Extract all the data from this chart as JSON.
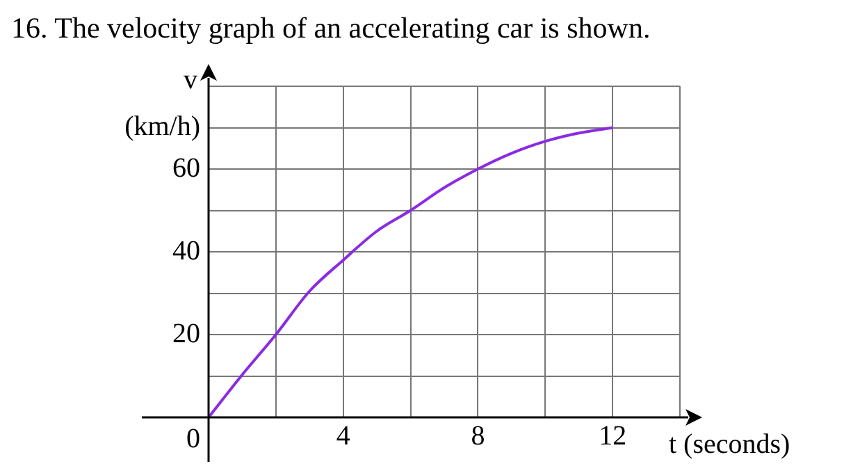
{
  "chart_data": {
    "type": "line",
    "title": "16. The velocity graph of an accelerating car is shown.",
    "xlabel": "t (seconds)",
    "ylabel": "v (km/h)",
    "x": [
      0,
      1,
      2,
      3,
      4,
      5,
      6,
      7,
      8,
      9,
      10,
      11,
      12
    ],
    "series": [
      {
        "color": "#8a2be2",
        "values": [
          0,
          10.3,
          20,
          30.5,
          38,
          45,
          50,
          55.5,
          60,
          63.8,
          66.7,
          68.7,
          70
        ]
      }
    ],
    "xlim": [
      0,
      14
    ],
    "ylim": [
      0,
      80
    ],
    "xticks": [
      {
        "value": 0,
        "label": "0"
      },
      {
        "value": 2,
        "label": null
      },
      4,
      {
        "value": 6,
        "label": null
      },
      8,
      {
        "value": 10,
        "label": null
      },
      12,
      {
        "value": 14,
        "label": null
      }
    ],
    "yticks": [
      {
        "value": 0,
        "label": null
      },
      {
        "value": 10,
        "label": null
      },
      20,
      {
        "value": 30,
        "label": null
      },
      40,
      {
        "value": 50,
        "label": null
      },
      60,
      {
        "value": 70,
        "label": null
      },
      {
        "value": 80,
        "label": null
      }
    ],
    "grid": true,
    "legend": false,
    "marker": "none",
    "line_style": "solid"
  }
}
